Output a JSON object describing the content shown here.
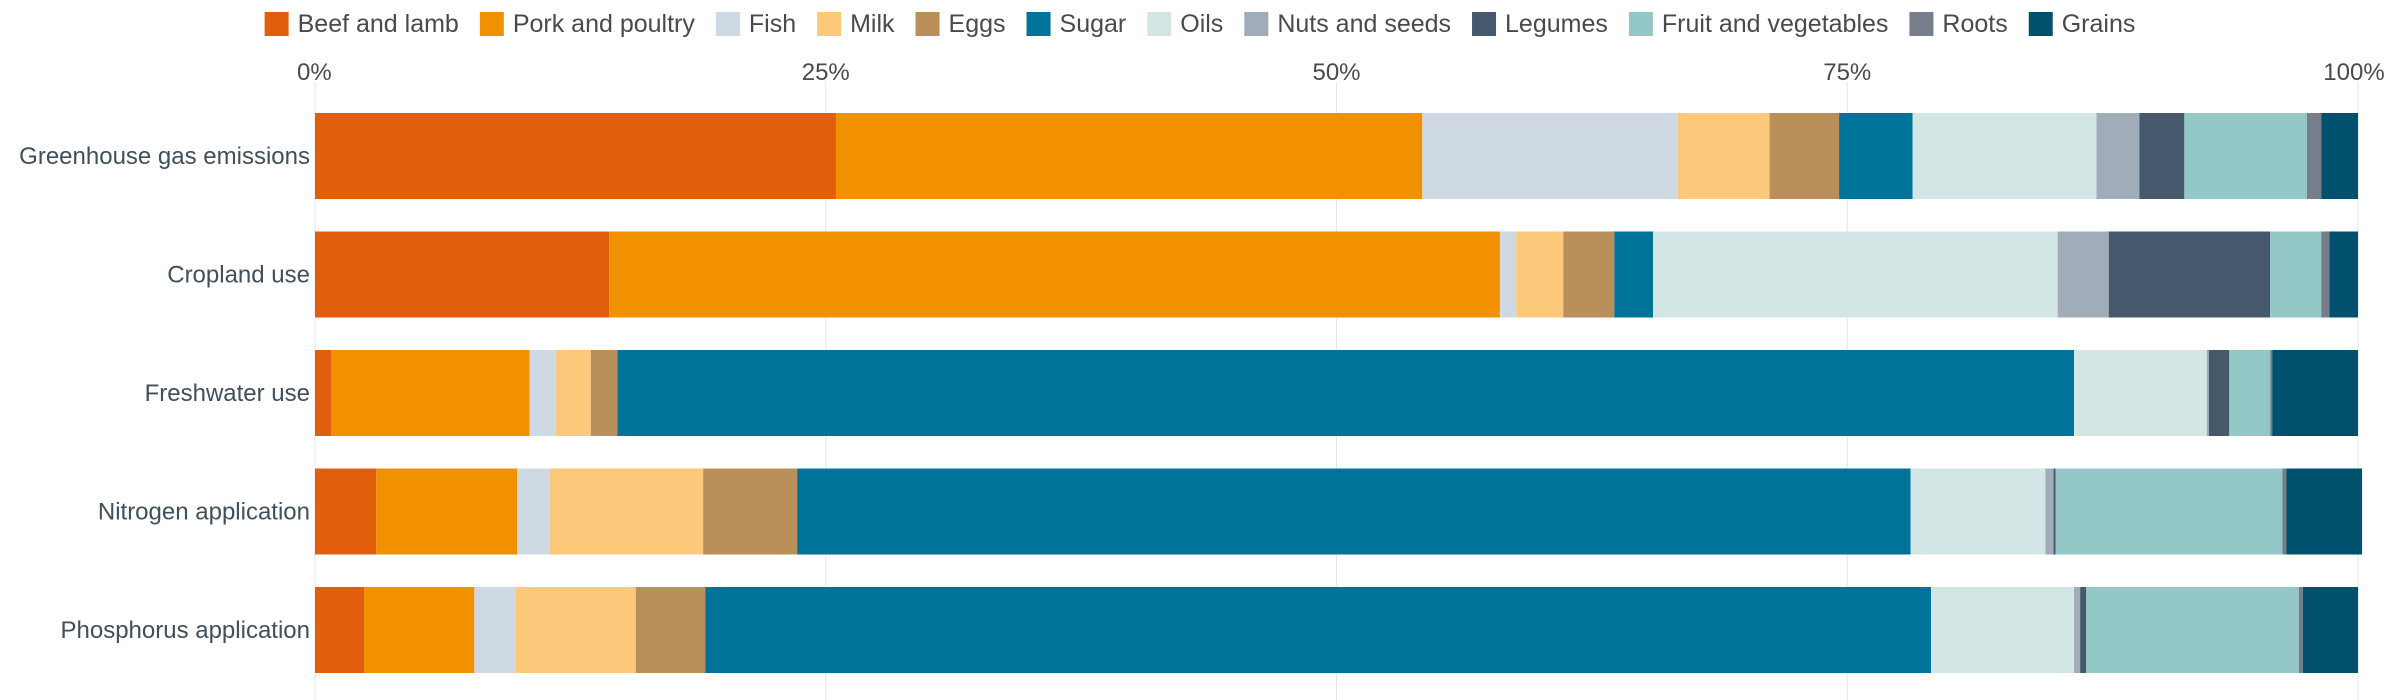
{
  "chart_data": {
    "type": "bar",
    "orientation": "horizontal",
    "stacked": true,
    "normalized": true,
    "title": "",
    "xlabel": "",
    "ylabel": "",
    "xlim": [
      0,
      100
    ],
    "x_ticks": [
      {
        "value": 0,
        "label": "0%"
      },
      {
        "value": 25,
        "label": "25%"
      },
      {
        "value": 50,
        "label": "50%"
      },
      {
        "value": 75,
        "label": "75%"
      },
      {
        "value": 100,
        "label": "100%"
      }
    ],
    "grid": true,
    "legend_position": "top",
    "categories": [
      "Greenhouse gas emissions",
      "Cropland use",
      "Freshwater use",
      "Nitrogen application",
      "Phosphorus application"
    ],
    "series": [
      {
        "name": "Beef and lamb",
        "color": "#e05e0c",
        "values": [
          25.5,
          14.4,
          0.8,
          3.0,
          2.4
        ]
      },
      {
        "name": "Pork and poultry",
        "color": "#f29100",
        "values": [
          28.7,
          43.6,
          9.7,
          6.9,
          5.4
        ]
      },
      {
        "name": "Fish",
        "color": "#cfd9e4",
        "values": [
          12.5,
          0.8,
          1.3,
          1.6,
          2.0
        ]
      },
      {
        "name": "Milk",
        "color": "#fcc97b",
        "values": [
          4.5,
          2.3,
          1.7,
          7.5,
          5.9
        ]
      },
      {
        "name": "Eggs",
        "color": "#b98f5a",
        "values": [
          3.4,
          2.5,
          1.3,
          4.6,
          3.4
        ]
      },
      {
        "name": "Sugar",
        "color": "#00739a",
        "values": [
          3.6,
          1.9,
          71.3,
          54.5,
          60.0
        ]
      },
      {
        "name": "Oils",
        "color": "#d2e7e5",
        "values": [
          9.0,
          19.8,
          6.5,
          6.6,
          7.0
        ]
      },
      {
        "name": "Nuts and seeds",
        "color": "#a0adb9",
        "values": [
          2.1,
          2.5,
          0.1,
          0.4,
          0.3
        ]
      },
      {
        "name": "Legumes",
        "color": "#46596c",
        "values": [
          2.2,
          7.9,
          1.0,
          0.1,
          0.3
        ]
      },
      {
        "name": "Fruit and vegetables",
        "color": "#93c8c7",
        "values": [
          6.0,
          2.5,
          2.0,
          11.1,
          10.4
        ]
      },
      {
        "name": "Roots",
        "color": "#767f89",
        "values": [
          0.7,
          0.4,
          0.1,
          0.2,
          0.2
        ]
      },
      {
        "name": "Grains",
        "color": "#00506e",
        "values": [
          1.8,
          1.4,
          4.2,
          3.7,
          2.7
        ]
      }
    ]
  }
}
